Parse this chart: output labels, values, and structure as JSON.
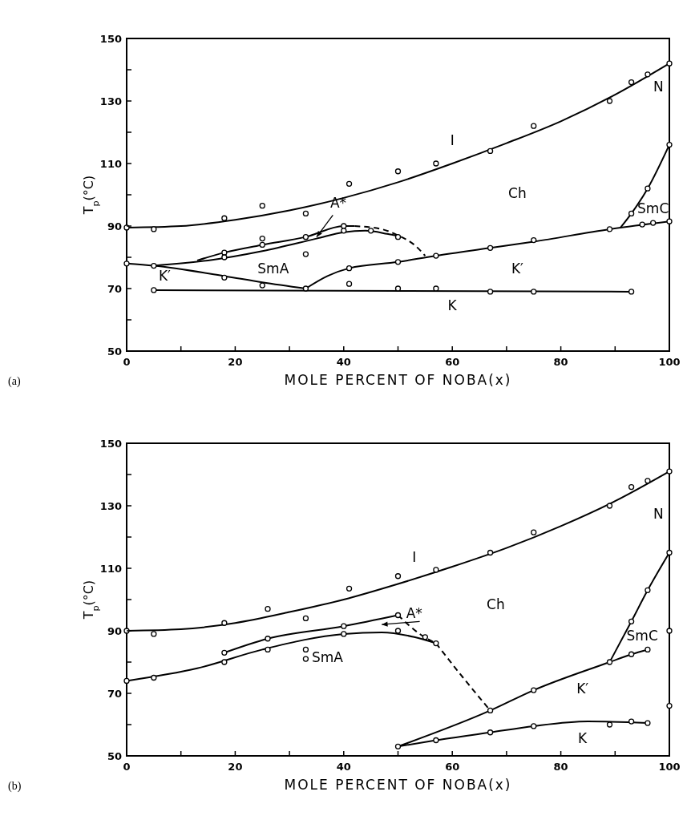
{
  "chart_data": [
    {
      "type": "scatter",
      "xlabel": "MOLE PERCENT OF NOBA(x)",
      "ylabel": "T$_{p}$(°C)",
      "xlim": [
        0,
        100
      ],
      "ylim": [
        50,
        150
      ],
      "xticks": [
        0,
        {
          "value": 10,
          "label": null
        },
        20,
        {
          "value": 30,
          "label": null
        },
        40,
        {
          "value": 50,
          "label": null
        },
        60,
        {
          "value": 70,
          "label": null
        },
        80,
        {
          "value": 90,
          "label": null
        },
        100
      ],
      "yticks": [
        50,
        {
          "value": 60,
          "label": null
        },
        70,
        {
          "value": 80,
          "label": null
        },
        90,
        {
          "value": 100,
          "label": null
        },
        110,
        {
          "value": 120,
          "label": null
        },
        130,
        {
          "value": 140,
          "label": null
        },
        150
      ],
      "annotations": [
        "(a)",
        "I",
        "Ch",
        "N",
        "SmC",
        "SmA",
        "K′",
        "K′",
        "K",
        "A*"
      ],
      "series": [
        {
          "type": "line",
          "color": "#000000",
          "marker": "none",
          "line_style": "solid",
          "x": [
            0,
            10,
            20,
            30,
            40,
            50,
            60,
            70,
            80,
            90,
            100
          ],
          "values": [
            89.5,
            90,
            92,
            95,
            99,
            104,
            110,
            116.5,
            123.5,
            132,
            142
          ]
        },
        {
          "type": "line",
          "color": "#000000",
          "marker": "none",
          "line_style": "solid",
          "x": [
            13,
            18,
            25,
            33,
            40,
            42
          ],
          "values": [
            79,
            81.5,
            84,
            86.5,
            90,
            90
          ]
        },
        {
          "type": "line",
          "color": "#000000",
          "marker": "none",
          "line_style": "dashed",
          "x": [
            42,
            47,
            50,
            53,
            55
          ],
          "values": [
            90,
            89,
            87,
            84,
            80.5
          ]
        },
        {
          "type": "line",
          "color": "#000000",
          "marker": "none",
          "line_style": "solid",
          "x": [
            5,
            15,
            25,
            35,
            40,
            44,
            48,
            50
          ],
          "values": [
            77.3,
            79,
            82,
            86,
            88,
            88.5,
            87.5,
            86.8
          ]
        },
        {
          "type": "line",
          "color": "#000000",
          "marker": "none",
          "line_style": "solid",
          "x": [
            0,
            5,
            18,
            25,
            33
          ],
          "values": [
            78,
            77.3,
            74,
            72,
            70
          ]
        },
        {
          "type": "line",
          "color": "#000000",
          "marker": "none",
          "line_style": "solid",
          "x": [
            33,
            37,
            41,
            50,
            57,
            67,
            75,
            89,
            100
          ],
          "values": [
            70,
            74,
            76.5,
            78.5,
            80.5,
            83,
            85,
            89,
            91.5
          ]
        },
        {
          "type": "line",
          "color": "#000000",
          "marker": "none",
          "line_style": "solid",
          "x": [
            5,
            93
          ],
          "values": [
            69.5,
            69
          ]
        },
        {
          "type": "line",
          "color": "#000000",
          "marker": "none",
          "line_style": "solid",
          "x": [
            91,
            93,
            96,
            100
          ],
          "values": [
            89.5,
            94,
            102,
            116
          ]
        },
        {
          "color": "#000000",
          "marker": "circle",
          "x": [
            0,
            5,
            18,
            25,
            33,
            41,
            50,
            57,
            67,
            75,
            89,
            93,
            96,
            100,
            0,
            5,
            18,
            18,
            25,
            25,
            33,
            33,
            33,
            40,
            40,
            41,
            41,
            45,
            50,
            50,
            50,
            57,
            57,
            67,
            67,
            75,
            75,
            89,
            93,
            93,
            95,
            96,
            97,
            100,
            100,
            5,
            18,
            25
          ],
          "values": [
            89.5,
            89,
            92.5,
            96.5,
            94,
            103.5,
            107.5,
            110,
            114,
            122,
            130,
            136,
            138.5,
            142,
            78,
            77.3,
            81.5,
            80,
            86,
            84,
            86.5,
            81,
            70,
            90,
            88.5,
            76.5,
            71.5,
            88.5,
            86.5,
            78.5,
            70,
            80.5,
            70,
            83,
            69,
            85.5,
            69,
            89,
            69,
            94,
            90.5,
            102,
            91,
            91.5,
            116,
            69.5,
            73.5,
            71
          ]
        }
      ]
    },
    {
      "type": "scatter",
      "xlabel": "MOLE PERCENT OF NOBA(x)",
      "ylabel": "T$_{p}$(°C)",
      "xlim": [
        0,
        100
      ],
      "ylim": [
        50,
        150
      ],
      "xticks": [
        0,
        {
          "value": 10,
          "label": null
        },
        20,
        {
          "value": 30,
          "label": null
        },
        40,
        {
          "value": 50,
          "label": null
        },
        60,
        {
          "value": 70,
          "label": null
        },
        80,
        {
          "value": 90,
          "label": null
        },
        100
      ],
      "yticks": [
        50,
        {
          "value": 60,
          "label": null
        },
        70,
        {
          "value": 80,
          "label": null
        },
        90,
        {
          "value": 100,
          "label": null
        },
        110,
        {
          "value": 120,
          "label": null
        },
        130,
        {
          "value": 140,
          "label": null
        },
        150
      ],
      "annotations": [
        "(b)",
        "I",
        "Ch",
        "N",
        "SmC",
        "SmA",
        "K′",
        "K",
        "A*"
      ],
      "series": [
        {
          "type": "line",
          "color": "#000000",
          "marker": "none",
          "line_style": "solid",
          "x": [
            0,
            10,
            20,
            30,
            40,
            50,
            60,
            70,
            80,
            90,
            100
          ],
          "values": [
            90,
            90.5,
            92.5,
            96,
            100,
            105,
            110.5,
            116.5,
            123.5,
            131.5,
            141
          ]
        },
        {
          "type": "line",
          "color": "#000000",
          "marker": "none",
          "line_style": "solid",
          "x": [
            18,
            26,
            40,
            50
          ],
          "values": [
            83,
            87.5,
            91.5,
            95
          ]
        },
        {
          "type": "line",
          "color": "#000000",
          "marker": "none",
          "line_style": "dashed",
          "x": [
            50,
            54,
            57
          ],
          "values": [
            95,
            89,
            86
          ]
        },
        {
          "type": "line",
          "color": "#000000",
          "marker": "none",
          "line_style": "solid",
          "x": [
            0,
            13,
            25,
            40,
            47,
            53,
            57
          ],
          "values": [
            74,
            78,
            84,
            89,
            89.5,
            88,
            86
          ]
        },
        {
          "type": "line",
          "color": "#000000",
          "marker": "none",
          "line_style": "dashed",
          "x": [
            57,
            62,
            67
          ],
          "values": [
            86,
            75,
            64.5
          ]
        },
        {
          "type": "line",
          "color": "#000000",
          "marker": "none",
          "line_style": "solid",
          "x": [
            50,
            67,
            75,
            89,
            93,
            96
          ],
          "values": [
            53,
            64.5,
            71,
            80,
            82.5,
            84
          ]
        },
        {
          "type": "line",
          "color": "#000000",
          "marker": "none",
          "line_style": "solid",
          "x": [
            89,
            93,
            96,
            100
          ],
          "values": [
            80,
            93,
            103,
            115
          ]
        },
        {
          "type": "line",
          "color": "#000000",
          "marker": "none",
          "line_style": "solid",
          "x": [
            50,
            57,
            67,
            75,
            85,
            96
          ],
          "values": [
            53,
            55,
            57.5,
            59.5,
            61,
            60.5
          ]
        },
        {
          "color": "#000000",
          "marker": "circle",
          "x": [
            0,
            5,
            18,
            26,
            33,
            41,
            50,
            57,
            67,
            75,
            89,
            93,
            96,
            100,
            0,
            5,
            18,
            18,
            26,
            26,
            33,
            33,
            40,
            40,
            50,
            50,
            50,
            55,
            57,
            57,
            67,
            67,
            75,
            75,
            89,
            89,
            93,
            93,
            93,
            96,
            96,
            96,
            100,
            100,
            100
          ],
          "values": [
            90,
            89,
            92.5,
            97,
            94,
            103.5,
            107.5,
            109.5,
            115,
            121.5,
            130,
            136,
            138,
            141,
            74,
            75,
            83,
            80,
            87.5,
            84,
            84,
            81,
            91.5,
            89,
            95,
            90,
            53,
            88,
            86,
            55,
            64.5,
            57.5,
            71,
            59.5,
            80,
            60,
            82.5,
            93,
            61,
            84,
            103,
            60.5,
            115,
            90,
            66
          ]
        }
      ]
    }
  ]
}
